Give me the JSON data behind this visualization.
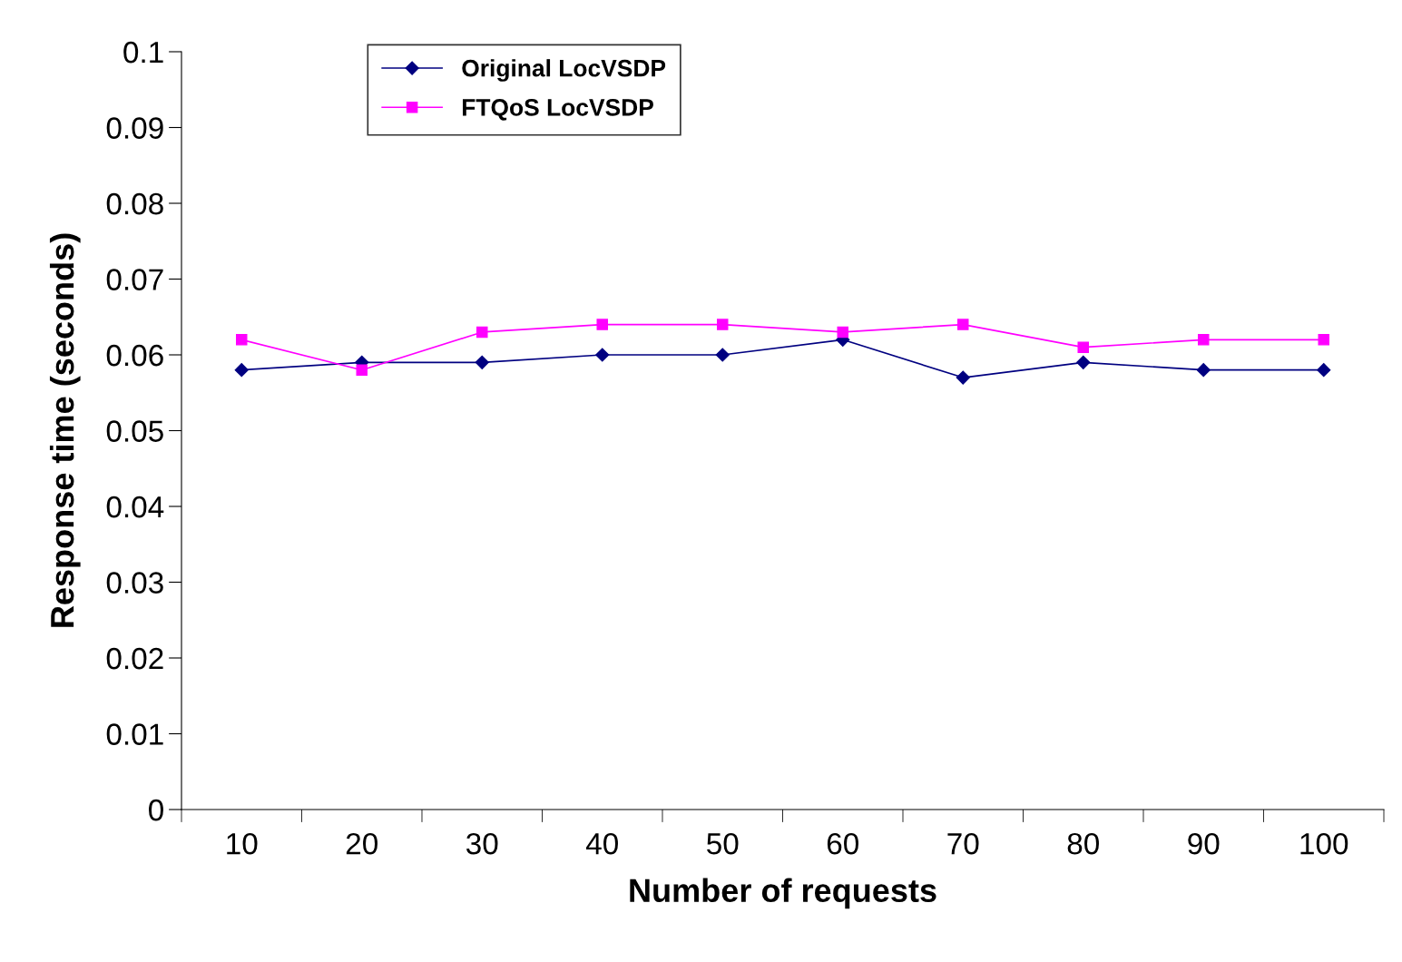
{
  "chart_data": {
    "type": "line",
    "xlabel": "Number of requests",
    "ylabel": "Response time (seconds)",
    "categories": [
      "10",
      "20",
      "30",
      "40",
      "50",
      "60",
      "70",
      "80",
      "90",
      "100"
    ],
    "series": [
      {
        "name": "Original LocVSDP",
        "color": "#000080",
        "marker": "diamond",
        "values": [
          0.058,
          0.059,
          0.059,
          0.06,
          0.06,
          0.062,
          0.057,
          0.059,
          0.058,
          0.058
        ]
      },
      {
        "name": "FTQoS LocVSDP",
        "color": "#ff00ff",
        "marker": "square",
        "values": [
          0.062,
          0.058,
          0.063,
          0.064,
          0.064,
          0.063,
          0.064,
          0.061,
          0.062,
          0.062
        ]
      }
    ],
    "ylim": [
      0,
      0.1
    ],
    "yticks": [
      0,
      0.01,
      0.02,
      0.03,
      0.04,
      0.05,
      0.06,
      0.07,
      0.08,
      0.09,
      0.1
    ],
    "grid": false,
    "legend": "top left"
  }
}
